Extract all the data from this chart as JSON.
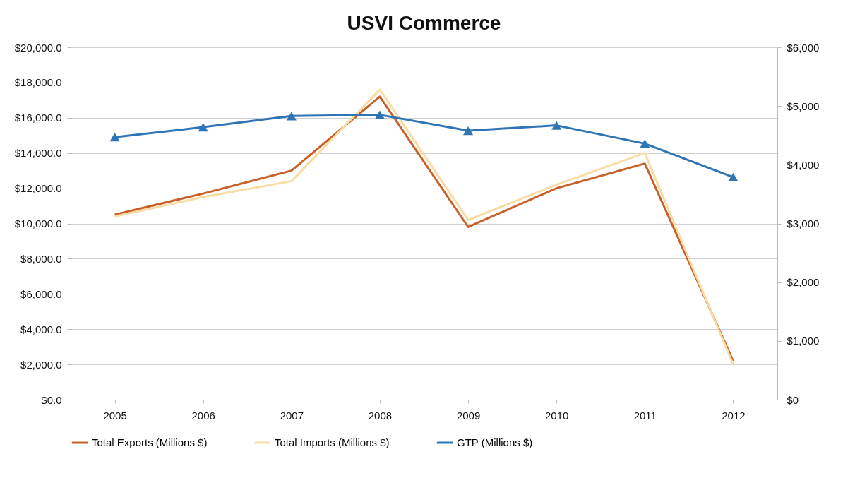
{
  "chart_data": {
    "type": "line",
    "title": "USVI Commerce",
    "categories": [
      "2005",
      "2006",
      "2007",
      "2008",
      "2009",
      "2010",
      "2011",
      "2012"
    ],
    "series": [
      {
        "name": "Total Exports (Millions $)",
        "color": "#c9602a",
        "values": [
          10500,
          11700,
          13000,
          17200,
          9800,
          12000,
          13400,
          2200
        ]
      },
      {
        "name": "Total Imports (Millions $)",
        "color": "#f8dca4",
        "values": [
          10400,
          11500,
          12400,
          17600,
          10200,
          12200,
          14000,
          2000
        ]
      },
      {
        "name": "GTP (Millions $)",
        "color": "#2e75b6",
        "axis": "y2",
        "marker": "triangle",
        "values": [
          4470,
          4640,
          4830,
          4850,
          4580,
          4670,
          4360,
          3790
        ]
      }
    ],
    "ylim": [
      0,
      20000
    ],
    "yticks": [
      {
        "value": 0,
        "label": "$0.0"
      },
      {
        "value": 2000,
        "label": "$2,000.0"
      },
      {
        "value": 4000,
        "label": "$4,000.0"
      },
      {
        "value": 6000,
        "label": "$6,000.0"
      },
      {
        "value": 8000,
        "label": "$8,000.0"
      },
      {
        "value": 10000,
        "label": "$10,000.0"
      },
      {
        "value": 12000,
        "label": "$12,000.0"
      },
      {
        "value": 14000,
        "label": "$14,000.0"
      },
      {
        "value": 16000,
        "label": "$16,000.0"
      },
      {
        "value": 18000,
        "label": "$18,000.0"
      },
      {
        "value": 20000,
        "label": "$20,000.0"
      }
    ],
    "y2lim": [
      0,
      6000
    ],
    "y2ticks": [
      {
        "value": 0,
        "label": "$0"
      },
      {
        "value": 1000,
        "label": "$1,000"
      },
      {
        "value": 2000,
        "label": "$2,000"
      },
      {
        "value": 3000,
        "label": "$3,000"
      },
      {
        "value": 4000,
        "label": "$4,000"
      },
      {
        "value": 5000,
        "label": "$5,000"
      },
      {
        "value": 6000,
        "label": "$6,000"
      }
    ],
    "grid": "y",
    "legend": "bottom"
  }
}
